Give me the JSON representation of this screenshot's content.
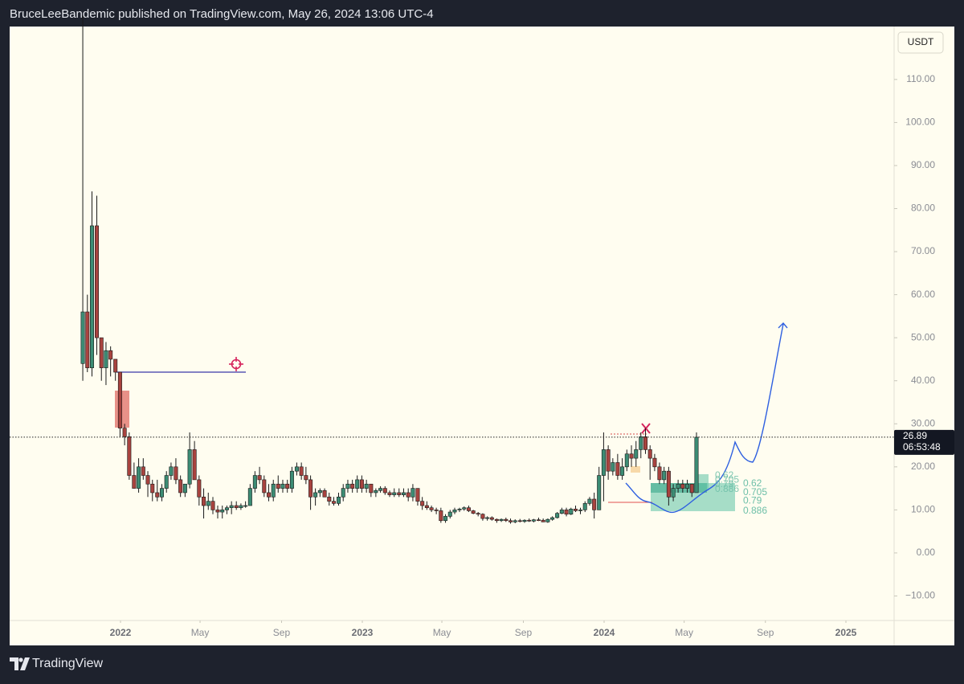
{
  "header": {
    "text": "BruceLeeBandemic published on TradingView.com, May 26, 2024 13:06 UTC-4"
  },
  "footer": {
    "brand": "TradingView"
  },
  "chart_data": {
    "type": "candlestick",
    "currency": "USDT",
    "countdown": "06:53:48",
    "last_price": 26.89,
    "up_color": "#3c8c74",
    "down_color": "#a8433f",
    "wick_color": "#1a1a1a",
    "xlim": [
      2021.5415,
      2025.1993
    ],
    "ylim": [
      -15.7,
      122.3
    ],
    "xticks": [
      2022,
      {
        "value": 2022.329,
        "label": "May"
      },
      {
        "value": 2022.666,
        "label": "Sep"
      },
      2023,
      {
        "value": 2023.329,
        "label": "May"
      },
      {
        "value": 2023.666,
        "label": "Sep"
      },
      2024,
      {
        "value": 2024.331,
        "label": "May"
      },
      {
        "value": 2024.667,
        "label": "Sep"
      },
      2025
    ],
    "yticks": [
      {
        "value": 110,
        "label": "110.00"
      },
      {
        "value": 100,
        "label": "100.00"
      },
      {
        "value": 90,
        "label": "90.00"
      },
      {
        "value": 80,
        "label": "80.00"
      },
      {
        "value": 70,
        "label": "70.00"
      },
      {
        "value": 60,
        "label": "60.00"
      },
      {
        "value": 50,
        "label": "50.00"
      },
      {
        "value": 40,
        "label": "40.00"
      },
      {
        "value": 30,
        "label": "30.00"
      },
      {
        "value": 20,
        "label": "20.00"
      },
      {
        "value": 10,
        "label": "10.00"
      },
      {
        "value": 0,
        "label": "0.00"
      },
      {
        "value": -10,
        "label": "−10.00"
      }
    ],
    "fib_levels": [
      0.62,
      0.705,
      0.79,
      0.886
    ],
    "x": [
      2021.844,
      2021.863,
      2021.882,
      2021.902,
      2021.921,
      2021.94,
      2021.959,
      2021.979,
      2021.998,
      2022.017,
      2022.036,
      2022.056,
      2022.075,
      2022.094,
      2022.113,
      2022.132,
      2022.152,
      2022.171,
      2022.19,
      2022.209,
      2022.229,
      2022.248,
      2022.267,
      2022.286,
      2022.306,
      2022.325,
      2022.344,
      2022.363,
      2022.382,
      2022.402,
      2022.421,
      2022.44,
      2022.459,
      2022.479,
      2022.498,
      2022.517,
      2022.536,
      2022.556,
      2022.575,
      2022.594,
      2022.613,
      2022.632,
      2022.652,
      2022.671,
      2022.69,
      2022.709,
      2022.729,
      2022.748,
      2022.767,
      2022.786,
      2022.806,
      2022.825,
      2022.844,
      2022.863,
      2022.882,
      2022.902,
      2022.921,
      2022.94,
      2022.959,
      2022.979,
      2022.998,
      2023.017,
      2023.036,
      2023.056,
      2023.075,
      2023.094,
      2023.113,
      2023.132,
      2023.152,
      2023.171,
      2023.19,
      2023.209,
      2023.229,
      2023.248,
      2023.267,
      2023.286,
      2023.306,
      2023.325,
      2023.344,
      2023.363,
      2023.382,
      2023.402,
      2023.421,
      2023.44,
      2023.459,
      2023.479,
      2023.498,
      2023.517,
      2023.536,
      2023.556,
      2023.575,
      2023.594,
      2023.613,
      2023.632,
      2023.652,
      2023.671,
      2023.69,
      2023.709,
      2023.729,
      2023.748,
      2023.767,
      2023.786,
      2023.806,
      2023.825,
      2023.844,
      2023.863,
      2023.882,
      2023.902,
      2023.921,
      2023.94,
      2023.959,
      2023.979,
      2023.998,
      2024.017,
      2024.036,
      2024.056,
      2024.075,
      2024.094,
      2024.113,
      2024.132,
      2024.152,
      2024.171,
      2024.19,
      2024.209,
      2024.229,
      2024.248,
      2024.267,
      2024.286,
      2024.306,
      2024.325,
      2024.344,
      2024.363,
      2024.382
    ],
    "ohlc": [
      [
        44,
        125,
        40,
        56
      ],
      [
        56,
        60,
        42,
        43
      ],
      [
        43,
        84,
        41,
        76
      ],
      [
        76,
        83,
        46,
        50
      ],
      [
        50,
        50,
        40,
        43
      ],
      [
        43,
        49,
        39,
        47
      ],
      [
        47,
        48,
        41,
        45
      ],
      [
        45,
        45,
        40,
        42
      ],
      [
        42,
        42,
        27,
        29
      ],
      [
        29,
        30,
        25,
        27
      ],
      [
        27,
        28,
        17,
        18
      ],
      [
        18,
        21,
        15,
        15
      ],
      [
        15,
        22,
        14,
        20
      ],
      [
        20,
        22,
        17,
        18
      ],
      [
        18,
        19,
        13,
        16
      ],
      [
        16,
        17,
        12,
        14
      ],
      [
        14,
        17,
        12,
        13
      ],
      [
        13,
        16,
        12,
        15
      ],
      [
        15,
        19,
        14,
        18
      ],
      [
        18,
        21,
        17,
        20
      ],
      [
        20,
        22,
        16,
        17
      ],
      [
        17,
        18,
        13,
        14
      ],
      [
        14,
        16,
        13,
        16
      ],
      [
        16,
        28,
        15,
        24
      ],
      [
        24,
        26,
        17,
        17
      ],
      [
        17,
        18,
        11,
        13
      ],
      [
        13,
        15,
        8,
        11
      ],
      [
        11,
        14,
        10,
        12
      ],
      [
        12,
        13,
        9,
        10
      ],
      [
        10,
        11,
        8,
        9.5
      ],
      [
        9.5,
        11,
        8,
        10
      ],
      [
        10,
        11,
        9,
        10.5
      ],
      [
        10.5,
        12,
        9,
        11
      ],
      [
        11,
        12,
        10,
        10.5
      ],
      [
        10.5,
        11.5,
        10,
        11
      ],
      [
        11,
        12,
        10.5,
        11
      ],
      [
        11,
        16,
        11,
        15
      ],
      [
        15,
        19,
        14,
        18
      ],
      [
        18,
        20,
        16,
        17
      ],
      [
        17,
        18,
        13,
        14
      ],
      [
        14,
        16,
        12,
        13
      ],
      [
        13,
        17,
        12,
        16
      ],
      [
        16,
        18,
        14,
        15
      ],
      [
        15,
        17,
        14,
        16
      ],
      [
        16,
        17,
        14,
        15
      ],
      [
        15,
        20,
        14,
        19
      ],
      [
        19,
        21,
        18,
        20
      ],
      [
        20,
        21,
        17,
        18
      ],
      [
        18,
        20,
        16,
        17
      ],
      [
        17,
        18,
        10,
        13
      ],
      [
        13,
        15,
        11,
        14
      ],
      [
        14,
        15,
        13,
        14.5
      ],
      [
        14.5,
        15,
        13,
        13
      ],
      [
        13,
        14,
        11,
        12
      ],
      [
        12,
        13,
        11,
        11.5
      ],
      [
        11.5,
        14,
        11,
        13
      ],
      [
        13,
        16,
        12,
        15
      ],
      [
        15,
        17,
        14,
        16
      ],
      [
        16,
        17,
        14,
        15
      ],
      [
        15,
        18,
        14,
        17
      ],
      [
        17,
        18,
        14,
        15
      ],
      [
        15,
        17,
        14,
        16
      ],
      [
        16,
        16,
        13,
        14
      ],
      [
        14,
        15,
        13,
        14.5
      ],
      [
        14.5,
        15.5,
        14,
        15
      ],
      [
        15,
        15.5,
        13.5,
        14
      ],
      [
        14,
        14.5,
        13,
        13.5
      ],
      [
        13.5,
        15,
        13,
        14
      ],
      [
        14,
        15,
        13,
        13.5
      ],
      [
        13.5,
        15,
        13,
        14
      ],
      [
        14,
        15,
        12,
        13
      ],
      [
        13,
        16,
        12,
        15
      ],
      [
        15,
        15,
        11,
        12
      ],
      [
        12,
        13,
        10,
        11
      ],
      [
        11,
        12,
        10,
        10.5
      ],
      [
        10.5,
        11,
        9.5,
        10
      ],
      [
        10,
        10.5,
        9,
        9.8
      ],
      [
        9.8,
        10.5,
        7,
        7.5
      ],
      [
        7.5,
        9,
        7,
        8.5
      ],
      [
        8.5,
        10,
        8,
        9.5
      ],
      [
        9.5,
        10.5,
        9,
        10
      ],
      [
        10,
        10.5,
        9.5,
        10.2
      ],
      [
        10.2,
        10.8,
        9.8,
        10.5
      ],
      [
        10.5,
        11,
        9.5,
        9.8
      ],
      [
        9.8,
        10,
        9,
        9.2
      ],
      [
        9.2,
        9.5,
        8.5,
        9
      ],
      [
        9,
        9.2,
        7.5,
        8
      ],
      [
        8,
        8.5,
        7.5,
        8.2
      ],
      [
        8.2,
        8.5,
        7.5,
        7.8
      ],
      [
        7.8,
        8,
        7,
        7.5
      ],
      [
        7.5,
        8,
        7.2,
        7.8
      ],
      [
        7.8,
        8.2,
        7.2,
        7.5
      ],
      [
        7.5,
        8,
        6.8,
        7.2
      ],
      [
        7.2,
        7.8,
        6.9,
        7.5
      ],
      [
        7.5,
        7.9,
        7.1,
        7.3
      ],
      [
        7.3,
        7.8,
        7,
        7.6
      ],
      [
        7.6,
        8,
        7.2,
        7.4
      ],
      [
        7.4,
        7.9,
        7.1,
        7.7
      ],
      [
        7.7,
        8.2,
        7.4,
        7.6
      ],
      [
        7.6,
        8,
        7.2,
        7.2
      ],
      [
        7.2,
        8,
        7,
        7.8
      ],
      [
        7.8,
        8.5,
        7.5,
        8.2
      ],
      [
        8.2,
        9.5,
        8,
        9.2
      ],
      [
        9.2,
        10.5,
        9,
        10
      ],
      [
        10,
        10.5,
        8.5,
        9
      ],
      [
        9,
        10.5,
        8.8,
        10.2
      ],
      [
        10.2,
        11,
        9.5,
        9.8
      ],
      [
        9.8,
        10.5,
        9,
        10
      ],
      [
        10,
        12,
        9.5,
        11.5
      ],
      [
        11.5,
        13,
        11,
        12.5
      ],
      [
        12.5,
        14,
        8,
        10
      ],
      [
        10,
        20,
        10,
        18
      ],
      [
        18,
        28,
        12,
        24
      ],
      [
        24,
        25,
        17,
        19
      ],
      [
        19,
        22,
        18,
        21
      ],
      [
        21,
        23,
        17,
        18
      ],
      [
        18,
        22,
        17,
        20
      ],
      [
        20,
        24,
        19,
        23
      ],
      [
        23,
        25,
        20,
        22
      ],
      [
        22,
        26,
        20,
        24
      ],
      [
        24,
        28,
        22,
        27
      ],
      [
        27,
        29,
        23,
        24
      ],
      [
        24,
        25,
        17,
        22
      ],
      [
        22,
        23,
        19,
        20
      ],
      [
        20,
        21,
        16,
        17
      ],
      [
        17,
        20,
        16,
        19
      ],
      [
        19,
        20,
        11,
        13
      ],
      [
        13,
        16,
        12,
        15
      ],
      [
        15,
        17,
        14,
        16
      ],
      [
        16,
        17,
        14,
        15
      ],
      [
        15,
        17,
        14,
        16
      ],
      [
        16,
        16,
        13,
        14
      ],
      [
        14,
        28,
        14,
        26.89
      ]
    ]
  }
}
